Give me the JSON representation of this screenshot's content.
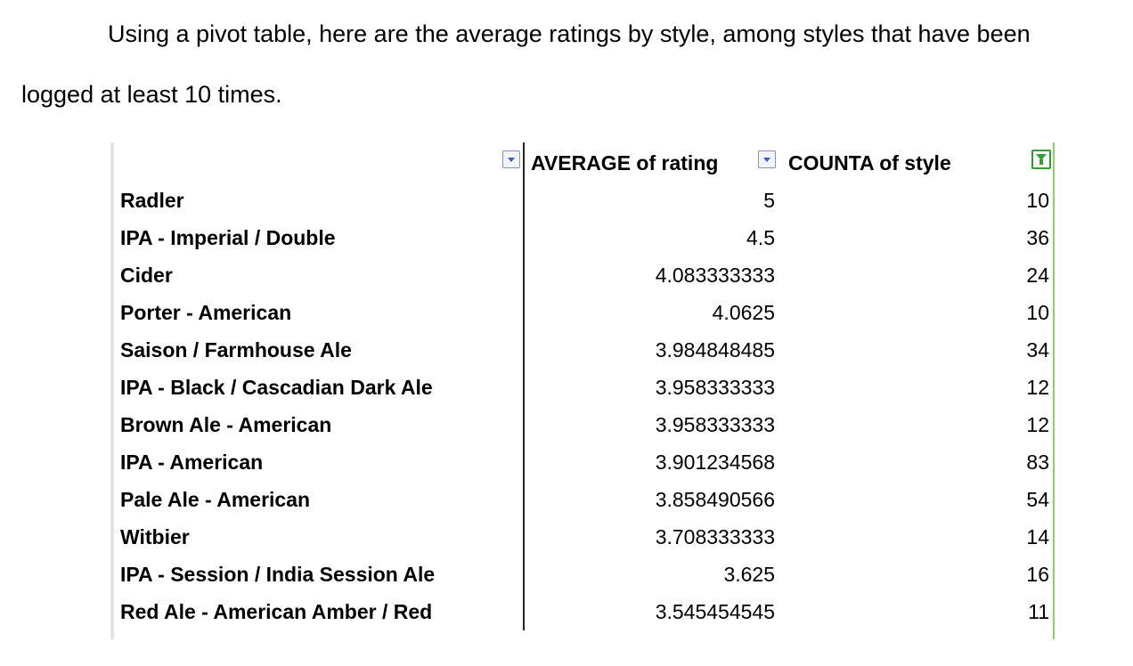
{
  "paragraph": {
    "line1": "Using a pivot table, here are the average ratings by style, among styles that have been",
    "line2": "logged at least 10 times."
  },
  "pivot": {
    "columns": {
      "average": "AVERAGE of rating",
      "count": "COUNTA of style"
    },
    "icons": {
      "average_dropdown": "dropdown-arrow-icon",
      "count_dropdown": "dropdown-arrow-icon",
      "filter": "filter-funnel-icon"
    },
    "colors": {
      "dropdown": "#3b5dc9",
      "filter": "#2f9d2f",
      "right_border": "#8ad06b"
    },
    "rows": [
      {
        "style": "Radler",
        "average": "5",
        "count": "10"
      },
      {
        "style": "IPA - Imperial / Double",
        "average": "4.5",
        "count": "36"
      },
      {
        "style": "Cider",
        "average": "4.083333333",
        "count": "24"
      },
      {
        "style": "Porter - American",
        "average": "4.0625",
        "count": "10"
      },
      {
        "style": "Saison / Farmhouse Ale",
        "average": "3.984848485",
        "count": "34"
      },
      {
        "style": "IPA - Black / Cascadian Dark Ale",
        "average": "3.958333333",
        "count": "12"
      },
      {
        "style": "Brown Ale - American",
        "average": "3.958333333",
        "count": "12"
      },
      {
        "style": "IPA - American",
        "average": "3.901234568",
        "count": "83"
      },
      {
        "style": "Pale Ale - American",
        "average": "3.858490566",
        "count": "54"
      },
      {
        "style": "Witbier",
        "average": "3.708333333",
        "count": "14"
      },
      {
        "style": "IPA - Session / India Session Ale",
        "average": "3.625",
        "count": "16"
      },
      {
        "style": "Red Ale - American Amber / Red",
        "average": "3.545454545",
        "count": "11"
      }
    ]
  }
}
